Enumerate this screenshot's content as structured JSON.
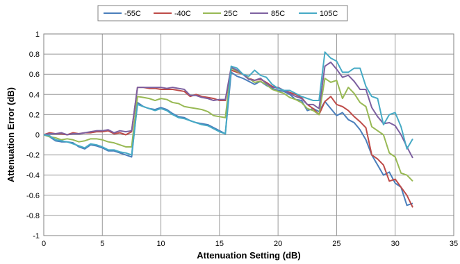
{
  "chart_data": {
    "type": "line",
    "title": "",
    "xlabel": "Attenuation Setting (dB)",
    "ylabel": "Attenuation Error (dB)",
    "xlim": [
      0,
      35
    ],
    "ylim": [
      -1,
      1
    ],
    "xticks": [
      0,
      5,
      10,
      15,
      20,
      25,
      30,
      35
    ],
    "yticks": [
      -1,
      -0.8,
      -0.6,
      -0.4,
      -0.2,
      0,
      0.2,
      0.4,
      0.6,
      0.8,
      1
    ],
    "ytick_labels": [
      "-1",
      "-0.8",
      "-0.6",
      "-0.4",
      "-0.2",
      "0",
      "0.2",
      "0.4",
      "0.6",
      "0.8",
      "1"
    ],
    "grid": true,
    "legend_position": "top",
    "x": [
      0,
      0.5,
      1,
      1.5,
      2,
      2.5,
      3,
      3.5,
      4,
      4.5,
      5,
      5.5,
      6,
      6.5,
      7,
      7.5,
      8,
      8.5,
      9,
      9.5,
      10,
      10.5,
      11,
      11.5,
      12,
      12.5,
      13,
      13.5,
      14,
      14.5,
      15,
      15.5,
      16,
      16.5,
      17,
      17.5,
      18,
      18.5,
      19,
      19.5,
      20,
      20.5,
      21,
      21.5,
      22,
      22.5,
      23,
      23.5,
      24,
      24.5,
      25,
      25.5,
      26,
      26.5,
      27,
      27.5,
      28,
      28.5,
      29,
      29.5,
      30,
      30.5,
      31,
      31.5
    ],
    "series": [
      {
        "name": "-55C",
        "color": "#4a7ebb",
        "values": [
          0,
          -0.02,
          -0.06,
          -0.07,
          -0.07,
          -0.08,
          -0.12,
          -0.14,
          -0.1,
          -0.11,
          -0.13,
          -0.16,
          -0.16,
          -0.18,
          -0.2,
          -0.22,
          0.32,
          0.28,
          0.26,
          0.25,
          0.27,
          0.25,
          0.21,
          0.18,
          0.17,
          0.14,
          0.12,
          0.11,
          0.1,
          0.07,
          0.04,
          0.01,
          0.62,
          0.58,
          0.56,
          0.53,
          0.5,
          0.53,
          0.49,
          0.46,
          0.44,
          0.43,
          0.4,
          0.35,
          0.34,
          0.24,
          0.26,
          0.23,
          0.33,
          0.26,
          0.19,
          0.22,
          0.15,
          0.12,
          0.05,
          -0.05,
          -0.2,
          -0.3,
          -0.4,
          -0.37,
          -0.48,
          -0.52,
          -0.7,
          -0.68
        ]
      },
      {
        "name": "-40C",
        "color": "#be4b48",
        "values": [
          0,
          0.02,
          0.01,
          0.01,
          0,
          0.02,
          0.01,
          0.02,
          0.02,
          0.03,
          0.03,
          0.04,
          0.01,
          0.02,
          0,
          0.03,
          0.47,
          0.47,
          0.46,
          0.46,
          0.45,
          0.45,
          0.45,
          0.44,
          0.43,
          0.38,
          0.4,
          0.38,
          0.37,
          0.36,
          0.34,
          0.34,
          0.64,
          0.62,
          0.6,
          0.56,
          0.54,
          0.55,
          0.52,
          0.48,
          0.46,
          0.44,
          0.42,
          0.4,
          0.37,
          0.3,
          0.26,
          0.2,
          0.33,
          0.38,
          0.3,
          0.28,
          0.24,
          0.18,
          0.13,
          0.07,
          -0.2,
          -0.24,
          -0.3,
          -0.46,
          -0.44,
          -0.52,
          -0.6,
          -0.72
        ]
      },
      {
        "name": "25C",
        "color": "#98b954",
        "values": [
          0,
          -0.02,
          -0.03,
          -0.05,
          -0.04,
          -0.05,
          -0.07,
          -0.06,
          -0.04,
          -0.04,
          -0.05,
          -0.07,
          -0.08,
          -0.1,
          -0.12,
          -0.12,
          0.38,
          0.37,
          0.36,
          0.34,
          0.36,
          0.35,
          0.32,
          0.31,
          0.28,
          0.27,
          0.26,
          0.25,
          0.23,
          0.19,
          0.18,
          0.17,
          0.66,
          0.63,
          0.6,
          0.56,
          0.52,
          0.53,
          0.5,
          0.45,
          0.43,
          0.41,
          0.37,
          0.35,
          0.32,
          0.26,
          0.24,
          0.2,
          0.56,
          0.52,
          0.54,
          0.36,
          0.47,
          0.41,
          0.32,
          0.28,
          0.08,
          0.04,
          0,
          -0.18,
          -0.22,
          -0.38,
          -0.4,
          -0.46
        ]
      },
      {
        "name": "85C",
        "color": "#7d60a0",
        "values": [
          0,
          0.01,
          0.01,
          0.02,
          0,
          0.01,
          0.01,
          0.02,
          0.03,
          0.04,
          0.04,
          0.05,
          0.02,
          0.04,
          0.03,
          0.04,
          0.47,
          0.47,
          0.47,
          0.47,
          0.47,
          0.46,
          0.47,
          0.46,
          0.45,
          0.39,
          0.39,
          0.37,
          0.36,
          0.34,
          0.35,
          0.35,
          0.67,
          0.64,
          0.6,
          0.55,
          0.54,
          0.56,
          0.51,
          0.47,
          0.47,
          0.44,
          0.41,
          0.38,
          0.36,
          0.3,
          0.3,
          0.26,
          0.68,
          0.72,
          0.65,
          0.57,
          0.59,
          0.53,
          0.45,
          0.45,
          0.27,
          0.18,
          0.11,
          0.12,
          0.09,
          0,
          -0.12,
          -0.23
        ]
      },
      {
        "name": "105C",
        "color": "#46aac5",
        "values": [
          0,
          -0.01,
          -0.05,
          -0.06,
          -0.07,
          -0.09,
          -0.11,
          -0.13,
          -0.09,
          -0.1,
          -0.12,
          -0.15,
          -0.15,
          -0.17,
          -0.18,
          -0.2,
          0.3,
          0.28,
          0.26,
          0.24,
          0.26,
          0.24,
          0.2,
          0.17,
          0.16,
          0.14,
          0.12,
          0.1,
          0.09,
          0.06,
          0.03,
          0.01,
          0.68,
          0.66,
          0.6,
          0.58,
          0.64,
          0.59,
          0.57,
          0.5,
          0.46,
          0.44,
          0.44,
          0.41,
          0.38,
          0.36,
          0.34,
          0.34,
          0.82,
          0.76,
          0.73,
          0.62,
          0.62,
          0.66,
          0.66,
          0.48,
          0.38,
          0.36,
          0.1,
          0.2,
          0.22,
          0.08,
          -0.14,
          -0.04
        ]
      }
    ]
  }
}
